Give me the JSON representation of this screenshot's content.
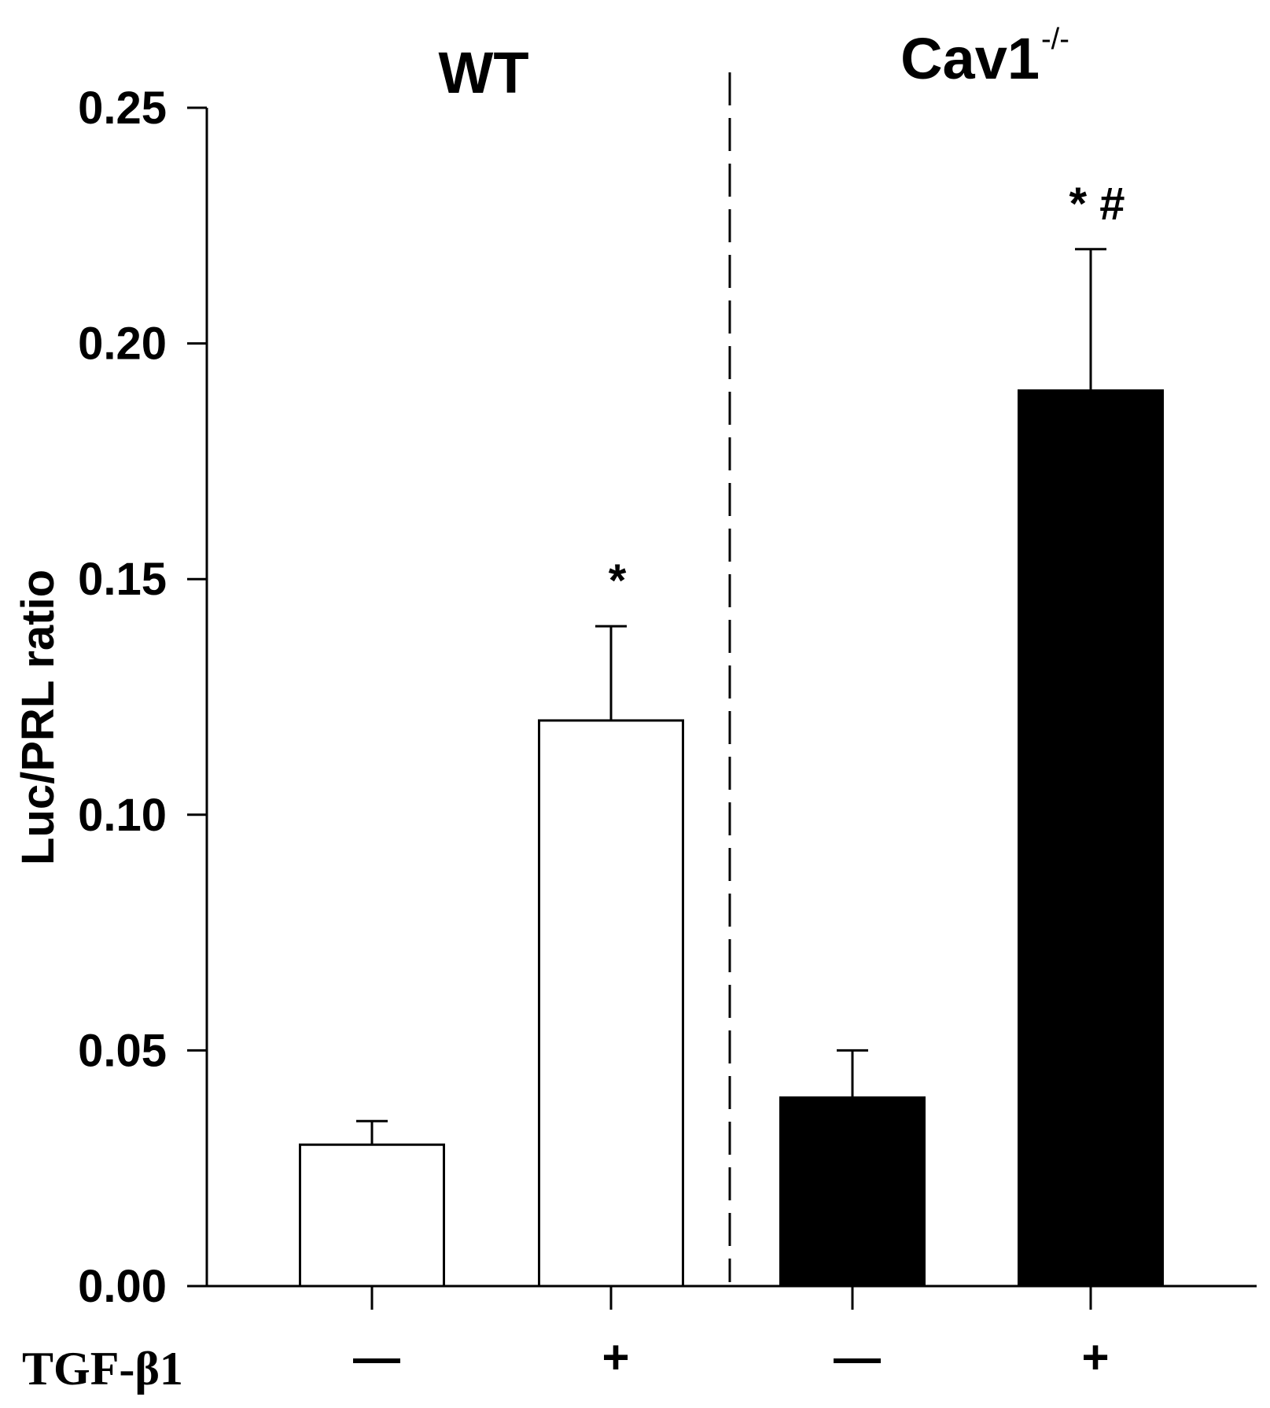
{
  "chart_data": {
    "type": "bar",
    "title": "",
    "ylabel": "Luc/PRL ratio",
    "xlabel": "",
    "ylim": [
      0,
      0.25
    ],
    "yticks": [
      0.0,
      0.05,
      0.1,
      0.15,
      0.2,
      0.25
    ],
    "ytick_labels": [
      "0.00",
      "0.05",
      "0.10",
      "0.15",
      "0.20",
      "0.25"
    ],
    "treatment_label": "TGF-β1",
    "groups": [
      {
        "name": "WT",
        "superscript": "",
        "fill": "#ffffff"
      },
      {
        "name": "Cav1",
        "superscript": "-/-",
        "fill": "#000000"
      }
    ],
    "bars": [
      {
        "group": "WT",
        "treatment": "—",
        "value": 0.03,
        "error": 0.005,
        "annotation": ""
      },
      {
        "group": "WT",
        "treatment": "+",
        "value": 0.12,
        "error": 0.02,
        "annotation": "*"
      },
      {
        "group": "Cav1",
        "treatment": "—",
        "value": 0.04,
        "error": 0.01,
        "annotation": ""
      },
      {
        "group": "Cav1",
        "treatment": "+",
        "value": 0.19,
        "error": 0.03,
        "annotation": "* #"
      }
    ],
    "colors": {
      "stroke": "#000000",
      "background": "#ffffff"
    }
  }
}
